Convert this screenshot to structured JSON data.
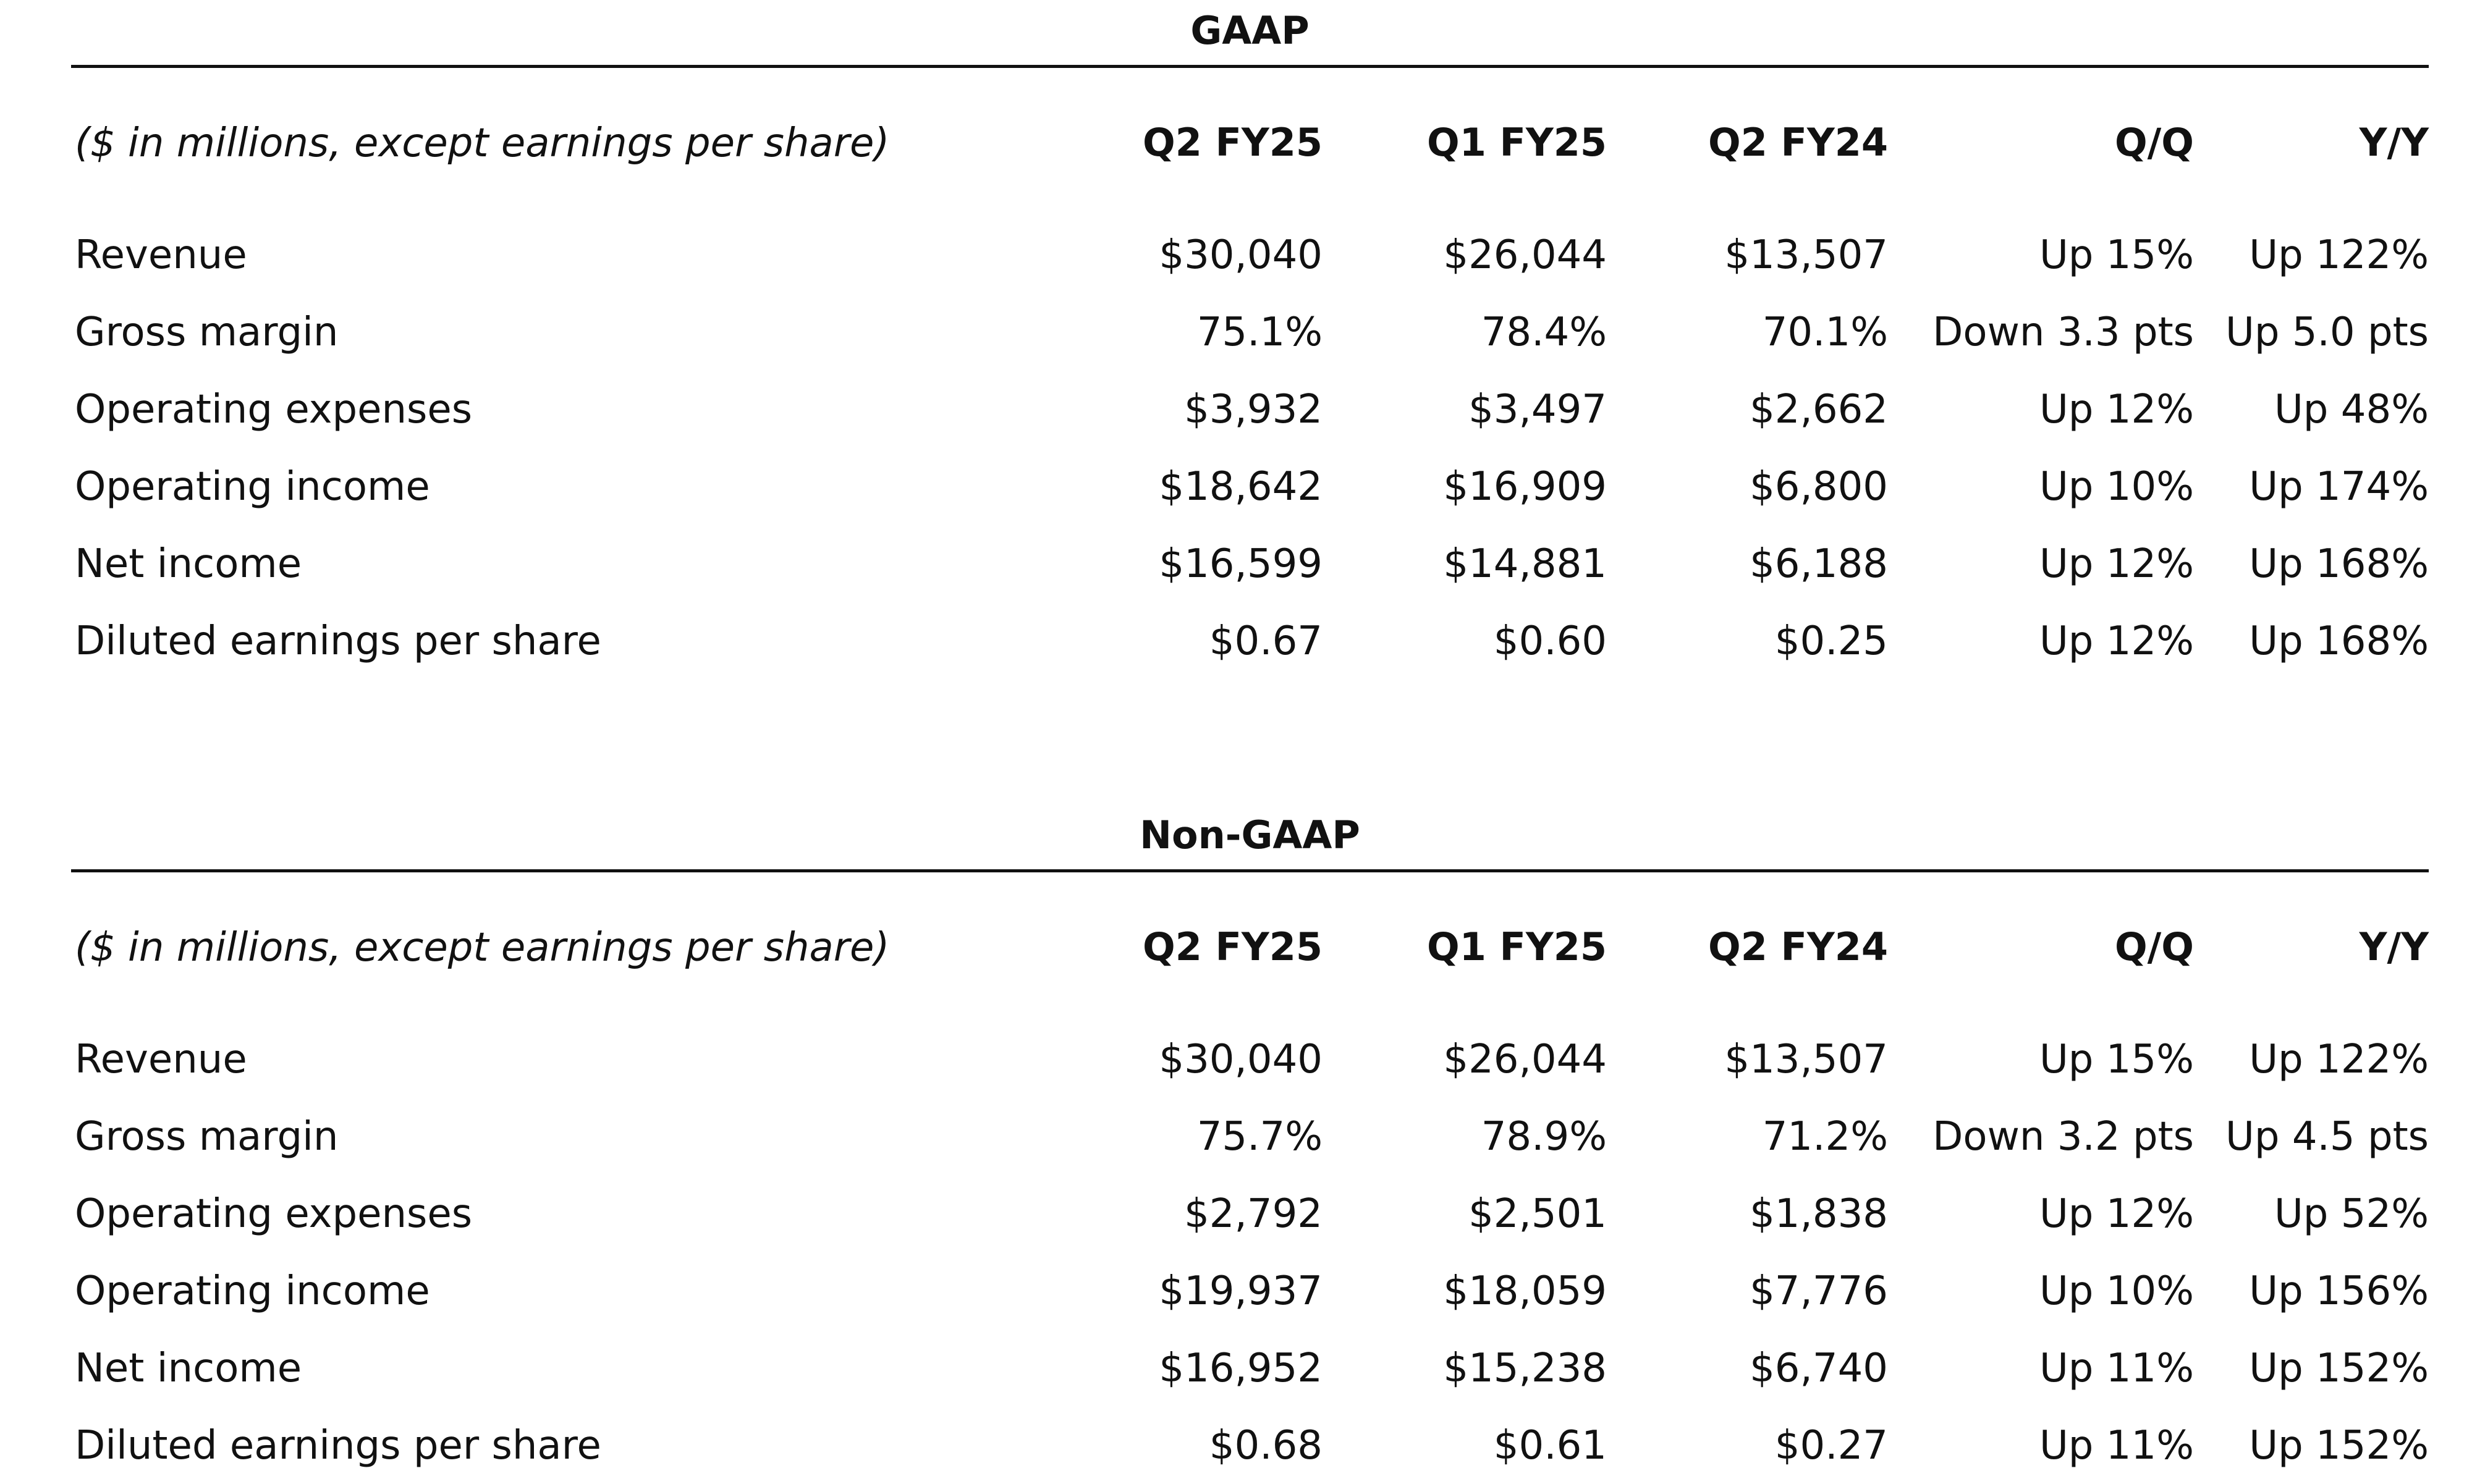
{
  "columns": [
    "Q2 FY25",
    "Q1 FY25",
    "Q2 FY24",
    "Q/Q",
    "Y/Y"
  ],
  "units_note": "($ in millions, except earnings per share)",
  "sections": [
    {
      "title": "GAAP",
      "rows": [
        {
          "label": "Revenue",
          "values": [
            "$30,040",
            "$26,044",
            "$13,507",
            "Up 15%",
            "Up 122%"
          ]
        },
        {
          "label": "Gross margin",
          "values": [
            "75.1%",
            "78.4%",
            "70.1%",
            "Down 3.3 pts",
            "Up 5.0 pts"
          ]
        },
        {
          "label": "Operating expenses",
          "values": [
            "$3,932",
            "$3,497",
            "$2,662",
            "Up 12%",
            "Up 48%"
          ]
        },
        {
          "label": "Operating income",
          "values": [
            "$18,642",
            "$16,909",
            "$6,800",
            "Up 10%",
            "Up 174%"
          ]
        },
        {
          "label": "Net income",
          "values": [
            "$16,599",
            "$14,881",
            "$6,188",
            "Up 12%",
            "Up 168%"
          ]
        },
        {
          "label": "Diluted earnings per share",
          "values": [
            "$0.67",
            "$0.60",
            "$0.25",
            "Up 12%",
            "Up 168%"
          ]
        }
      ]
    },
    {
      "title": "Non-GAAP",
      "rows": [
        {
          "label": "Revenue",
          "values": [
            "$30,040",
            "$26,044",
            "$13,507",
            "Up 15%",
            "Up 122%"
          ]
        },
        {
          "label": "Gross margin",
          "values": [
            "75.7%",
            "78.9%",
            "71.2%",
            "Down 3.2 pts",
            "Up 4.5 pts"
          ]
        },
        {
          "label": "Operating expenses",
          "values": [
            "$2,792",
            "$2,501",
            "$1,838",
            "Up 12%",
            "Up 52%"
          ]
        },
        {
          "label": "Operating income",
          "values": [
            "$19,937",
            "$18,059",
            "$7,776",
            "Up 10%",
            "Up 156%"
          ]
        },
        {
          "label": "Net income",
          "values": [
            "$16,952",
            "$15,238",
            "$6,740",
            "Up 11%",
            "Up 152%"
          ]
        },
        {
          "label": "Diluted earnings per share",
          "values": [
            "$0.68",
            "$0.61",
            "$0.27",
            "Up 11%",
            "Up 152%"
          ]
        }
      ]
    }
  ]
}
